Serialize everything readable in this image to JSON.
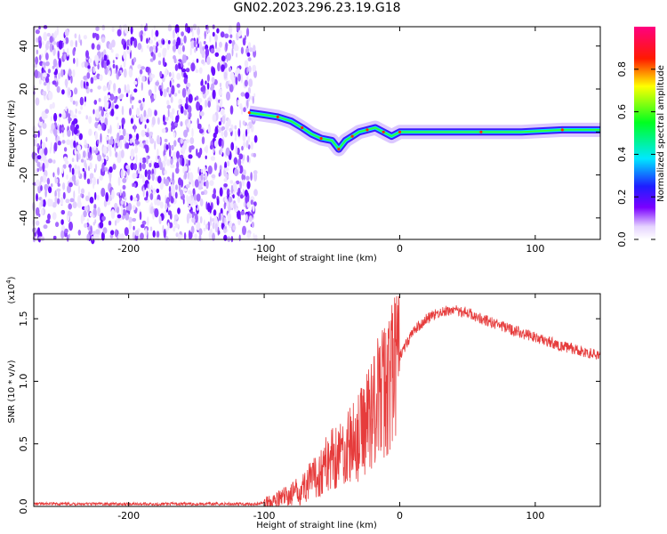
{
  "title": "GN02.2023.296.23.19.G18",
  "chart_data": [
    {
      "type": "heatmap",
      "xlabel": "Height of straight line (km)",
      "ylabel": "Frequency (Hz)",
      "xlim": [
        -270,
        148
      ],
      "ylim": [
        -50,
        49
      ],
      "x_ticks": [
        -200,
        -100,
        0,
        100
      ],
      "y_ticks": [
        -40,
        -20,
        0,
        20,
        40
      ],
      "noise_region_x": [
        -270,
        -106
      ],
      "signal_track": {
        "x": [
          -111,
          -100,
          -90,
          -80,
          -72,
          -65,
          -58,
          -50,
          -45,
          -40,
          -35,
          -30,
          -24,
          -18,
          -12,
          -6,
          0,
          30,
          60,
          90,
          120,
          148
        ],
        "y": [
          9,
          8,
          7,
          5,
          2,
          -1,
          -3,
          -4,
          -8,
          -4,
          -2,
          0,
          1,
          2,
          0,
          -2,
          0,
          0,
          0,
          0,
          1,
          1
        ]
      },
      "colorbar": {
        "label": "Normalized spectral amplitude",
        "range": [
          0,
          1
        ],
        "ticks": [
          "0.0",
          "0.2",
          "0.4",
          "0.6",
          "0.8"
        ]
      }
    },
    {
      "type": "line",
      "xlabel": "Height of straight line (km)",
      "ylabel": "SNR (10 * v/v)",
      "scale_note": "(x10",
      "scale_exp": "4",
      "xlim": [
        -270,
        148
      ],
      "ylim": [
        0,
        1.7
      ],
      "x_ticks": [
        -200,
        -100,
        0,
        100
      ],
      "y_ticks": [
        "0.0",
        "0.5",
        "1.0",
        "1.5"
      ],
      "color": "#e63c3c",
      "series": [
        {
          "x": [
            -270,
            -200,
            -150,
            -105,
            -90,
            -75,
            -60,
            -50,
            -40,
            -30,
            -20,
            -10,
            0,
            10,
            20,
            30,
            40,
            50,
            60,
            80,
            100,
            120,
            148
          ],
          "y": [
            0.02,
            0.02,
            0.02,
            0.02,
            0.05,
            0.12,
            0.25,
            0.4,
            0.45,
            0.55,
            0.8,
            0.95,
            1.2,
            1.4,
            1.5,
            1.55,
            1.57,
            1.55,
            1.5,
            1.42,
            1.35,
            1.28,
            1.2
          ]
        }
      ]
    }
  ]
}
